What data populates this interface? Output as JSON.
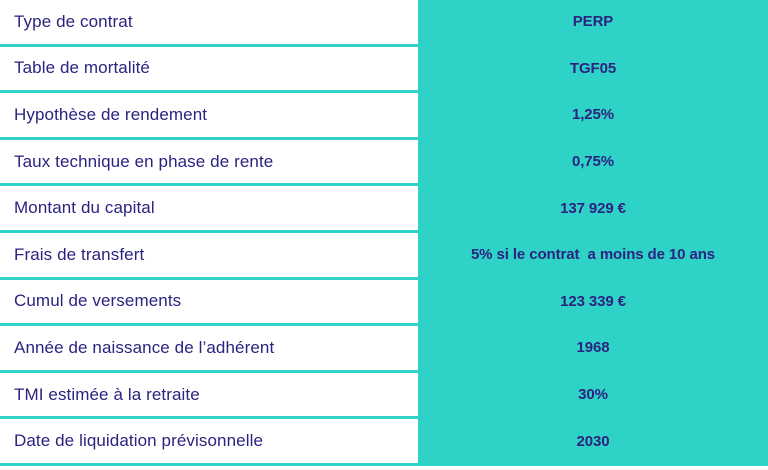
{
  "colors": {
    "accent_teal": "#2fd2c7",
    "text_navy": "#2b2380",
    "background": "#ffffff"
  },
  "table": {
    "rows": [
      {
        "label": "Type de contrat",
        "value": "PERP"
      },
      {
        "label": "Table de mortalité",
        "value": "TGF05"
      },
      {
        "label": "Hypothèse de rendement",
        "value": "1,25%"
      },
      {
        "label": "Taux technique en phase de rente",
        "value": "0,75%"
      },
      {
        "label": "Montant du capital",
        "value": "137 929 €"
      },
      {
        "label": "Frais de transfert",
        "value": "5% si le contrat  a moins de 10 ans"
      },
      {
        "label": "Cumul de versements",
        "value": "123 339 €"
      },
      {
        "label": "Année de naissance de l’adhérent",
        "value": "1968"
      },
      {
        "label": "TMI estimée à la retraite",
        "value": "30%"
      },
      {
        "label": "Date de liquidation prévisonnelle",
        "value": "2030"
      }
    ]
  }
}
